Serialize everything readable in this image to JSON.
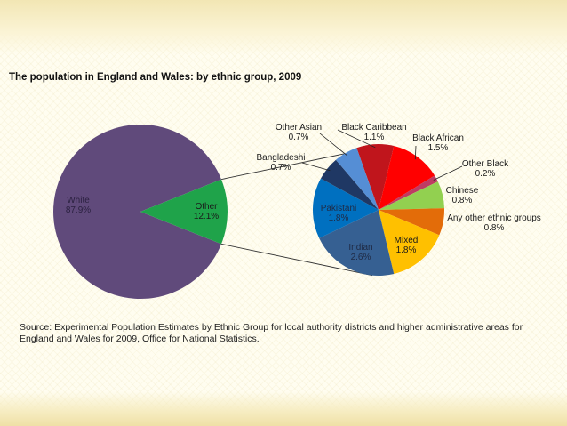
{
  "slide": {
    "title": "The population in England and Wales: by ethnic group, 2009",
    "source": "Source: Experimental Population Estimates by Ethnic Group for local authority districts and higher administrative areas for England and Wales for 2009, Office for National Statistics."
  },
  "chart_data": [
    {
      "type": "pie",
      "categories": [
        "White",
        "Other"
      ],
      "values": [
        87.9,
        12.1
      ],
      "value_labels": [
        "87.9%",
        "12.1%"
      ],
      "colors": [
        "#604a7b",
        "#1fa34a"
      ],
      "label_colors": [
        "#2b2140",
        "#1a1a1a"
      ]
    },
    {
      "type": "pie",
      "categories": [
        "Black Caribbean",
        "Black African",
        "Other Black",
        "Chinese",
        "Any other ethnic groups",
        "Mixed",
        "Indian",
        "Pakistani",
        "Bangladeshi",
        "Other Asian"
      ],
      "values": [
        1.1,
        1.5,
        0.2,
        0.8,
        0.8,
        1.8,
        2.6,
        1.8,
        0.7,
        0.7
      ],
      "value_labels": [
        "1.1%",
        "1.5%",
        "0.2%",
        "0.8%",
        "0.8%",
        "1.8%",
        "2.6%",
        "1.8%",
        "0.7%",
        "0.7%"
      ],
      "colors": [
        "#c0151c",
        "#ff0000",
        "#bf3b63",
        "#92d050",
        "#e36c09",
        "#ffc000",
        "#366092",
        "#0070c0",
        "#1f3864",
        "#558ed5"
      ],
      "label_colors": [
        "#1a1a1a",
        "#1a1a1a",
        "#1a1a1a",
        "#1a1a1a",
        "#1a1a1a",
        "#1a1a1a",
        "#1f2a44",
        "#1f2a44",
        "#1a1a1a",
        "#1a1a1a"
      ]
    }
  ]
}
